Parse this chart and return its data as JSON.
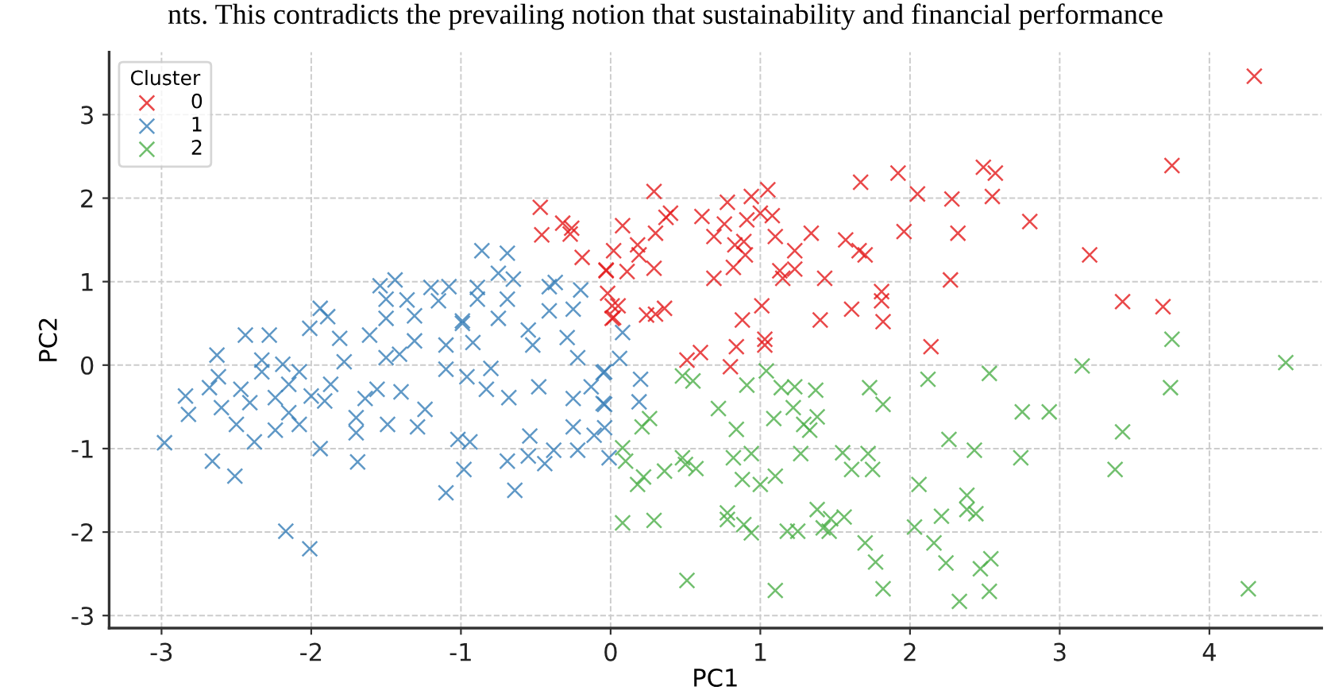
{
  "chart_data": {
    "type": "scatter",
    "xlabel": "PC1",
    "ylabel": "PC2",
    "legend_title": "Cluster",
    "annotations": [
      "nts. This contradicts the prevailing notion that sustainability and financial performance"
    ],
    "xlim": [
      -3.35,
      4.75
    ],
    "ylim": [
      -3.15,
      3.75
    ],
    "xticks": [
      -3,
      -2,
      -1,
      0,
      1,
      2,
      3,
      4
    ],
    "yticks": [
      -3,
      -2,
      -1,
      0,
      1,
      2,
      3
    ],
    "grid": true,
    "legend": "top left",
    "marker": "cross",
    "series": [
      {
        "name": "0",
        "color": "#e41a1c",
        "x": [
          4.3,
          3.75,
          2.49,
          2.57,
          1.92,
          1.67,
          0.29,
          1.05,
          0.94,
          0.78,
          2.05,
          2.28,
          2.55,
          2.8,
          0.4,
          0.37,
          0.61,
          1.0,
          1.08,
          0.91,
          0.76,
          0.08,
          0.3,
          0.69,
          1.1,
          1.34,
          1.96,
          2.32,
          0.89,
          1.57,
          0.18,
          0.02,
          0.83,
          1.23,
          1.66,
          0.19,
          0.9,
          1.7,
          3.2,
          -0.03,
          0.11,
          0.29,
          0.82,
          1.13,
          1.23,
          0.69,
          1.15,
          1.43,
          2.27,
          -0.02,
          0.05,
          0.02,
          0.24,
          0.3,
          0.36,
          1.01,
          0.88,
          1.4,
          1.61,
          1.81,
          1.81,
          1.82,
          3.42,
          3.69,
          2.14,
          0.51,
          0.6,
          0.84,
          1.03,
          1.03,
          0.8,
          -0.47,
          -0.46,
          -0.32,
          -0.26,
          -0.27,
          -0.19,
          -0.03,
          0.01,
          0.01
        ],
        "values": [
          3.46,
          2.39,
          2.37,
          2.3,
          2.3,
          2.19,
          2.08,
          2.1,
          2.02,
          1.95,
          2.05,
          1.99,
          2.02,
          1.72,
          1.82,
          1.77,
          1.78,
          1.82,
          1.79,
          1.74,
          1.69,
          1.67,
          1.58,
          1.54,
          1.54,
          1.58,
          1.6,
          1.58,
          1.48,
          1.5,
          1.44,
          1.37,
          1.44,
          1.37,
          1.37,
          1.32,
          1.32,
          1.32,
          1.32,
          1.14,
          1.12,
          1.16,
          1.17,
          1.13,
          1.15,
          1.04,
          1.04,
          1.04,
          1.02,
          0.86,
          0.71,
          0.57,
          0.6,
          0.61,
          0.68,
          0.71,
          0.54,
          0.54,
          0.67,
          0.88,
          0.77,
          0.52,
          0.76,
          0.7,
          0.22,
          0.06,
          0.15,
          0.22,
          0.24,
          0.31,
          -0.02,
          1.89,
          1.56,
          1.7,
          1.64,
          1.57,
          1.29,
          1.13,
          0.71,
          0.56
        ]
      },
      {
        "name": "1",
        "color": "#377eb8",
        "x": [
          -0.86,
          -0.69,
          -0.75,
          -0.65,
          -1.54,
          -1.44,
          -1.2,
          -1.08,
          -0.89,
          -0.41,
          -0.37,
          -0.2,
          -1.94,
          -1.89,
          -1.5,
          -1.36,
          -0.89,
          -0.69,
          -0.41,
          -0.25,
          -0.99,
          -2.01,
          -2.44,
          -2.28,
          -1.81,
          -1.61,
          -1.5,
          -1.31,
          -1.15,
          -0.99,
          -1.31,
          -1.1,
          -0.92,
          -0.75,
          -0.55,
          -0.29,
          -0.52,
          -2.63,
          -2.33,
          -2.19,
          -2.08,
          -1.78,
          -1.5,
          -1.41,
          -1.1,
          -0.8,
          -0.22,
          -0.04,
          -2.84,
          -2.68,
          -2.62,
          -2.47,
          -2.33,
          -2.24,
          -2.15,
          -2.0,
          -1.87,
          -1.91,
          -1.64,
          -1.56,
          -1.4,
          -0.96,
          -0.83,
          -0.68,
          -0.48,
          -0.25,
          -0.13,
          -0.04,
          -2.82,
          -2.6,
          -2.5,
          -2.41,
          -2.24,
          -2.15,
          -2.08,
          -1.7,
          -1.7,
          -1.49,
          -1.29,
          -1.24,
          -2.98,
          -2.66,
          -2.51,
          -2.38,
          -1.94,
          -1.69,
          -1.02,
          -0.94,
          -0.98,
          -1.1,
          -0.69,
          -0.64,
          -0.54,
          -0.55,
          -0.44,
          -0.38,
          -0.25,
          -0.22,
          -0.11,
          -0.04,
          -0.01,
          -2.17,
          -2.01,
          0.08,
          0.06,
          0.2,
          0.19,
          -0.05,
          -0.05
        ],
        "values": [
          1.37,
          1.34,
          1.1,
          1.03,
          0.95,
          1.02,
          0.93,
          0.94,
          0.93,
          0.94,
          0.99,
          0.9,
          0.68,
          0.58,
          0.79,
          0.78,
          0.79,
          0.79,
          0.65,
          0.67,
          0.53,
          0.44,
          0.36,
          0.36,
          0.32,
          0.36,
          0.56,
          0.59,
          0.77,
          0.5,
          0.29,
          0.24,
          0.27,
          0.56,
          0.42,
          0.33,
          0.24,
          0.12,
          0.06,
          0.01,
          -0.08,
          0.04,
          0.09,
          0.13,
          -0.05,
          -0.04,
          0.09,
          -0.08,
          -0.37,
          -0.27,
          -0.14,
          -0.29,
          -0.08,
          -0.39,
          -0.23,
          -0.37,
          -0.23,
          -0.43,
          -0.4,
          -0.29,
          -0.32,
          -0.14,
          -0.29,
          -0.39,
          -0.26,
          -0.4,
          -0.26,
          -0.47,
          -0.59,
          -0.51,
          -0.71,
          -0.45,
          -0.78,
          -0.57,
          -0.71,
          -0.63,
          -0.81,
          -0.71,
          -0.74,
          -0.53,
          -0.93,
          -1.15,
          -1.33,
          -0.92,
          -1.0,
          -1.16,
          -0.89,
          -0.92,
          -1.25,
          -1.53,
          -1.15,
          -1.5,
          -0.85,
          -1.09,
          -1.18,
          -1.02,
          -0.74,
          -1.02,
          -0.84,
          -0.75,
          -1.11,
          -1.99,
          -2.2,
          0.39,
          0.08,
          -0.17,
          -0.44,
          -0.46,
          -0.09
        ]
      },
      {
        "name": "2",
        "color": "#4daf4a",
        "x": [
          3.75,
          4.51,
          3.15,
          3.74,
          2.53,
          2.12,
          0.48,
          0.55,
          1.04,
          0.91,
          1.14,
          1.23,
          1.37,
          1.73,
          1.82,
          0.72,
          1.22,
          0.26,
          0.21,
          1.09,
          1.38,
          1.29,
          1.33,
          0.84,
          2.75,
          2.93,
          3.42,
          2.26,
          2.43,
          0.08,
          0.1,
          0.48,
          0.5,
          0.57,
          0.82,
          0.94,
          1.27,
          1.55,
          1.72,
          1.61,
          1.75,
          2.74,
          3.37,
          0.36,
          0.22,
          0.18,
          0.88,
          1.0,
          1.1,
          2.06,
          2.38,
          2.38,
          2.44,
          2.21,
          1.38,
          1.47,
          1.56,
          1.42,
          1.46,
          0.78,
          0.78,
          0.89,
          0.94,
          1.18,
          1.25,
          2.03,
          0.08,
          0.29,
          1.7,
          2.16,
          1.77,
          2.24,
          2.54,
          2.47,
          0.51,
          1.1,
          1.82,
          2.53,
          2.33,
          4.26
        ],
        "values": [
          0.31,
          0.03,
          -0.01,
          -0.27,
          -0.1,
          -0.17,
          -0.13,
          -0.19,
          -0.07,
          -0.24,
          -0.27,
          -0.26,
          -0.3,
          -0.27,
          -0.47,
          -0.52,
          -0.51,
          -0.64,
          -0.74,
          -0.64,
          -0.62,
          -0.71,
          -0.78,
          -0.77,
          -0.56,
          -0.56,
          -0.8,
          -0.89,
          -1.02,
          -0.99,
          -1.15,
          -1.11,
          -1.19,
          -1.24,
          -1.11,
          -1.06,
          -1.06,
          -1.05,
          -1.06,
          -1.25,
          -1.25,
          -1.11,
          -1.25,
          -1.27,
          -1.34,
          -1.43,
          -1.37,
          -1.43,
          -1.33,
          -1.43,
          -1.56,
          -1.73,
          -1.78,
          -1.81,
          -1.73,
          -1.84,
          -1.82,
          -1.95,
          -1.99,
          -1.77,
          -1.85,
          -1.91,
          -2.01,
          -1.99,
          -1.99,
          -1.94,
          -1.89,
          -1.86,
          -2.13,
          -2.13,
          -2.36,
          -2.37,
          -2.32,
          -2.44,
          -2.58,
          -2.7,
          -2.68,
          -2.71,
          -2.83,
          -2.68
        ]
      }
    ]
  }
}
